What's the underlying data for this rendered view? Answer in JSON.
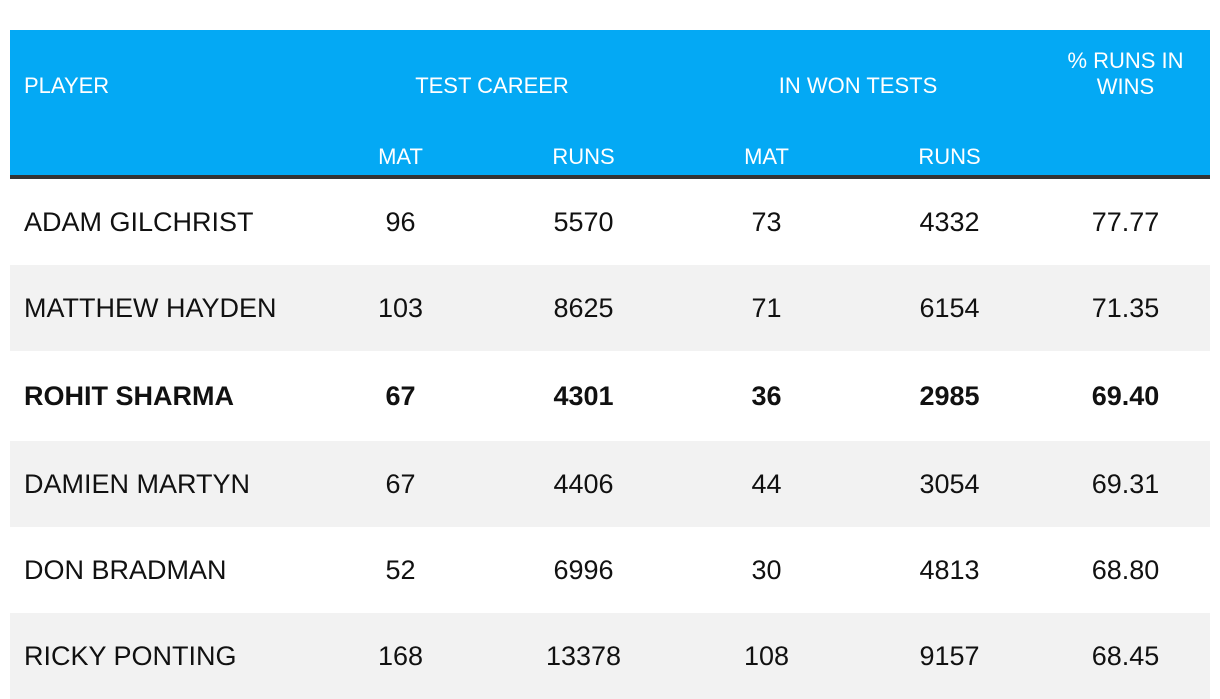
{
  "chart_data": {
    "type": "table",
    "header": {
      "player": "PLAYER",
      "test_career": "TEST CAREER",
      "in_won_tests": "IN WON TESTS",
      "pct": "% RUNS IN WINS",
      "mat": "MAT",
      "runs": "RUNS"
    },
    "columns": [
      "PLAYER",
      "TEST CAREER MAT",
      "TEST CAREER RUNS",
      "IN WON TESTS MAT",
      "IN WON TESTS RUNS",
      "% RUNS IN WINS"
    ],
    "rows": [
      [
        "ADAM GILCHRIST",
        "96",
        "5570",
        "73",
        "4332",
        "77.77"
      ],
      [
        "MATTHEW HAYDEN",
        "103",
        "8625",
        "71",
        "6154",
        "71.35"
      ],
      [
        "ROHIT SHARMA",
        "67",
        "4301",
        "36",
        "2985",
        "69.40"
      ],
      [
        "DAMIEN MARTYN",
        "67",
        "4406",
        "44",
        "3054",
        "69.31"
      ],
      [
        "DON BRADMAN",
        "52",
        "6996",
        "30",
        "4813",
        "68.80"
      ],
      [
        "RICKY PONTING",
        "168",
        "13378",
        "108",
        "9157",
        "68.45"
      ]
    ],
    "highlighted_row": "ROHIT SHARMA",
    "colors": {
      "header_bg": "#04a9f4",
      "header_text": "#ffffff",
      "stripe": "#f2f2f2",
      "divider": "#333333"
    }
  }
}
